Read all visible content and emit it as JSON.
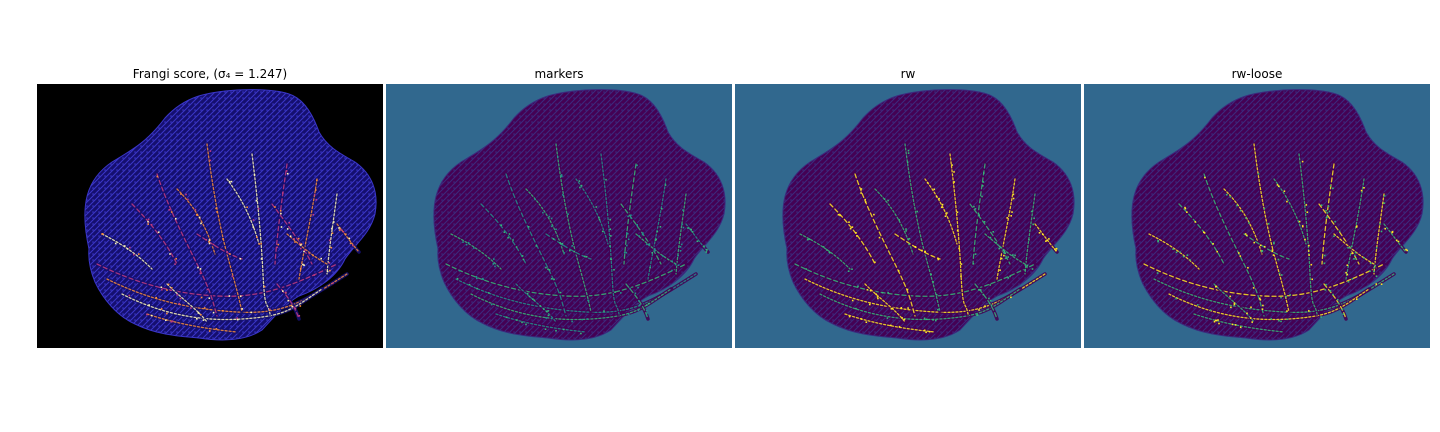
{
  "figure": {
    "panels": [
      {
        "title": "Frangi score, (σ₄ = 1.247)",
        "background": "#000000",
        "region_fill": "#150f70",
        "texture_color": "#3a36c8",
        "vessel_colors": [
          "#c23b80",
          "#f88d3a",
          "#fcf6b6"
        ]
      },
      {
        "title": "markers",
        "background": "#31688e",
        "region_fill": "#440154",
        "texture_color": "#3b2a7e",
        "vessel_colors": [
          "#35b779",
          "#21918c"
        ]
      },
      {
        "title": "rw",
        "background": "#31688e",
        "region_fill": "#440154",
        "texture_color": "#3b2a7e",
        "vessel_colors": [
          "#35b779",
          "#fde725"
        ]
      },
      {
        "title": "rw-loose",
        "background": "#31688e",
        "region_fill": "#440154",
        "texture_color": "#3b2a7e",
        "vessel_colors": [
          "#fde725",
          "#35b779"
        ]
      }
    ]
  }
}
